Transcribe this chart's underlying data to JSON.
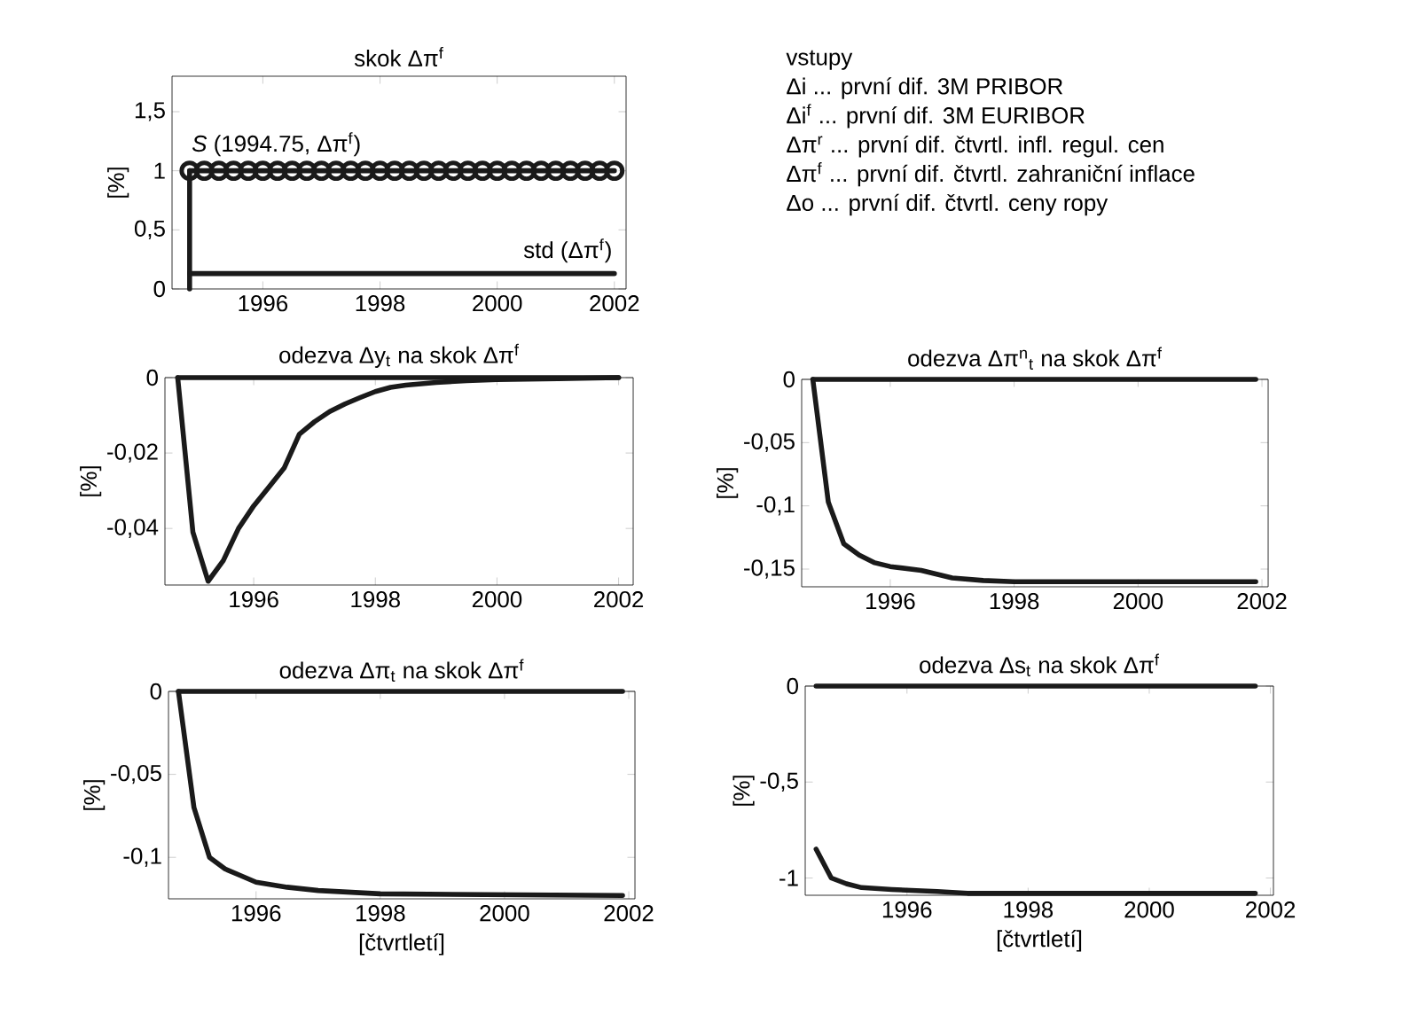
{
  "chart_data": [
    {
      "type": "line",
      "title": "skok Δπ$^{f}$",
      "ylabel": "[%]",
      "xlim": [
        1994.45,
        2002.2
      ],
      "ylim": [
        0,
        1.8
      ],
      "xticks": [
        1996,
        1998,
        2000,
        2002
      ],
      "yticks": [
        0,
        {
          "value": 0.5,
          "label": "0,5"
        },
        1,
        {
          "value": 1.5,
          "label": "1,5"
        }
      ],
      "series": [
        {
          "name": "*S* (1994.75, Δπ$^{f}$)",
          "color": "#1a1a1a",
          "marker": "circle",
          "x": [
            1994.75,
            1995,
            1995.25,
            1995.5,
            1995.75,
            1996,
            1996.25,
            1996.5,
            1996.75,
            1997,
            1997.25,
            1997.5,
            1997.75,
            1998,
            1998.25,
            1998.5,
            1998.75,
            1999,
            1999.25,
            1999.5,
            1999.75,
            2000,
            2000.25,
            2000.5,
            2000.75,
            2001,
            2001.25,
            2001.5,
            2001.75,
            2002
          ],
          "values": [
            1,
            1,
            1,
            1,
            1,
            1,
            1,
            1,
            1,
            1,
            1,
            1,
            1,
            1,
            1,
            1,
            1,
            1,
            1,
            1,
            1,
            1,
            1,
            1,
            1,
            1,
            1,
            1,
            1,
            1
          ]
        },
        {
          "color": "#1a1a1a",
          "x": [
            1994.75,
            1994.75
          ],
          "values": [
            0,
            1
          ]
        },
        {
          "name": "std (Δπ$^{f}$)",
          "color": "#1a1a1a",
          "x": [
            1994.75,
            2002
          ],
          "values": [
            0.13,
            0.13
          ]
        }
      ]
    },
    {
      "type": "other",
      "title": "vstupy",
      "annotations": [
        "Δi   ... první dif. 3M PRIBOR",
        "Δi$^{f}$  ... první dif. 3M EURIBOR",
        "Δπ$^{r}$ ... první dif. čtvrtl. infl. regul. cen",
        "Δπ$^{f}$ ... první dif. čtvrtl. zahraniční inflace",
        "Δo   ... první dif. čtvrtl. ceny ropy"
      ]
    },
    {
      "type": "line",
      "title": "odezva Δy$_{t}$ na skok Δπ$^{f}$",
      "ylabel": "[%]",
      "xlim": [
        1994.54,
        2002.24
      ],
      "ylim": [
        -0.055,
        0
      ],
      "xticks": [
        1996,
        1998,
        2000,
        2002
      ],
      "yticks": [
        {
          "value": -0.04,
          "label": "-0,04"
        },
        {
          "value": -0.02,
          "label": "-0,02"
        },
        0
      ],
      "series": [
        {
          "color": "#1a1a1a",
          "x": [
            1994.75,
            2002
          ],
          "values": [
            0,
            0
          ]
        },
        {
          "color": "#1a1a1a",
          "x": [
            1994.75,
            1995,
            1995.25,
            1995.5,
            1995.75,
            1996,
            1996.25,
            1996.5,
            1996.75,
            1997,
            1997.25,
            1997.5,
            1997.75,
            1998,
            1998.25,
            1998.5,
            1999,
            1999.5,
            2000,
            2001,
            2002
          ],
          "values": [
            0,
            -0.041,
            -0.054,
            -0.0485,
            -0.04,
            -0.034,
            -0.029,
            -0.024,
            -0.015,
            -0.0117,
            -0.009,
            -0.007,
            -0.0053,
            -0.0037,
            -0.0026,
            -0.002,
            -0.0013,
            -0.0008,
            -0.0005,
            -0.0003,
            0
          ]
        }
      ]
    },
    {
      "type": "line",
      "title": "odezva Δπ$^{n}$$_{t}$ na skok Δπ$^{f}$",
      "ylabel": "[%]",
      "xlim": [
        1994.57,
        2002.1
      ],
      "ylim": [
        -0.164,
        0
      ],
      "xticks": [
        1996,
        1998,
        2000,
        2002
      ],
      "yticks": [
        {
          "value": -0.15,
          "label": "-0,15"
        },
        {
          "value": -0.1,
          "label": "-0,1"
        },
        {
          "value": -0.05,
          "label": "-0,05"
        },
        0
      ],
      "series": [
        {
          "color": "#1a1a1a",
          "x": [
            1994.75,
            2001.9
          ],
          "values": [
            0,
            0
          ]
        },
        {
          "color": "#1a1a1a",
          "x": [
            1994.75,
            1995,
            1995.25,
            1995.5,
            1995.75,
            1996,
            1996.5,
            1997,
            1997.5,
            1998,
            2001.9
          ],
          "values": [
            0,
            -0.097,
            -0.13,
            -0.139,
            -0.145,
            -0.148,
            -0.151,
            -0.157,
            -0.159,
            -0.16,
            -0.16
          ]
        }
      ]
    },
    {
      "type": "line",
      "title": "odezva Δπ$_{t}$ na skok Δπ$^{f}$",
      "ylabel": "[%]",
      "xlabel": "[čtvrtletí]",
      "xlim": [
        1994.59,
        2002.1
      ],
      "ylim": [
        -0.125,
        0
      ],
      "xticks": [
        1996,
        1998,
        2000,
        2002
      ],
      "yticks": [
        {
          "value": -0.1,
          "label": "-0,1"
        },
        {
          "value": -0.05,
          "label": "-0,05"
        },
        0
      ],
      "series": [
        {
          "color": "#1a1a1a",
          "x": [
            1994.75,
            2001.9
          ],
          "values": [
            0,
            0
          ]
        },
        {
          "color": "#1a1a1a",
          "x": [
            1994.75,
            1995,
            1995.25,
            1995.5,
            1995.75,
            1996,
            1996.5,
            1997,
            1998,
            2001.9
          ],
          "values": [
            0,
            -0.07,
            -0.1,
            -0.107,
            -0.111,
            -0.115,
            -0.118,
            -0.12,
            -0.122,
            -0.123
          ]
        }
      ]
    },
    {
      "type": "line",
      "title": "odezva Δs$_{t}$ na skok Δπ$^{f}$",
      "ylabel": "[%]",
      "xlabel": "[čtvrtletí]",
      "xlim": [
        1994.32,
        2002.05
      ],
      "ylim": [
        -1.09,
        0
      ],
      "xticks": [
        1996,
        1998,
        2000,
        2002
      ],
      "yticks": [
        -1,
        {
          "value": -0.5,
          "label": "-0,5"
        },
        0
      ],
      "series": [
        {
          "color": "#1a1a1a",
          "x": [
            1994.5,
            2001.75
          ],
          "values": [
            0,
            0
          ]
        },
        {
          "color": "#1a1a1a",
          "x": [
            1994.5,
            1994.75,
            1995,
            1995.25,
            1995.75,
            1996.5,
            1997,
            2001.75
          ],
          "values": [
            -0.85,
            -1.0,
            -1.03,
            -1.05,
            -1.06,
            -1.07,
            -1.08,
            -1.08
          ]
        }
      ]
    }
  ]
}
